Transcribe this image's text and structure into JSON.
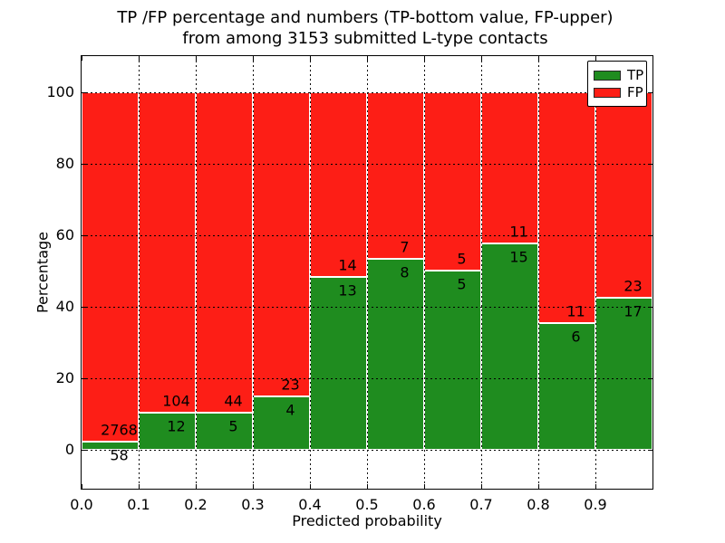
{
  "chart_data": {
    "type": "bar",
    "stacked": true,
    "normalized": "each bin scaled to 100%",
    "title_line1": "TP /FP percentage and numbers (TP-bottom value, FP-upper)",
    "title_line2": "from among 3153 submitted L-type contacts",
    "xlabel": "Predicted probability",
    "ylabel": "Percentage",
    "total_contacts": 3153,
    "xlim": [
      0.0,
      1.0
    ],
    "ylim": [
      -11,
      110
    ],
    "grid": "dotted, on",
    "categories": [
      "0.0-0.1",
      "0.1-0.2",
      "0.2-0.3",
      "0.3-0.4",
      "0.4-0.5",
      "0.5-0.6",
      "0.6-0.7",
      "0.7-0.8",
      "0.8-0.9",
      "0.9-1.0"
    ],
    "series": [
      {
        "name": "TP",
        "color": "#1f8c1f",
        "counts": [
          58,
          12,
          5,
          4,
          13,
          8,
          5,
          15,
          6,
          17
        ]
      },
      {
        "name": "FP",
        "color": "#fd1e16",
        "counts": [
          2768,
          104,
          44,
          23,
          14,
          7,
          5,
          11,
          11,
          23
        ]
      }
    ],
    "tp_percent_of_bin": [
      2.05,
      10.34,
      10.2,
      14.81,
      48.15,
      53.33,
      50.0,
      57.69,
      35.29,
      42.5
    ],
    "xticks": [
      "0.0",
      "0.1",
      "0.2",
      "0.3",
      "0.4",
      "0.5",
      "0.6",
      "0.7",
      "0.8",
      "0.9"
    ],
    "yticks": [
      0,
      20,
      40,
      60,
      80,
      100
    ],
    "legend": {
      "position": "upper right",
      "entries": [
        {
          "label": "TP",
          "color": "#1f8c1f"
        },
        {
          "label": "FP",
          "color": "#fd1e16"
        }
      ]
    }
  }
}
